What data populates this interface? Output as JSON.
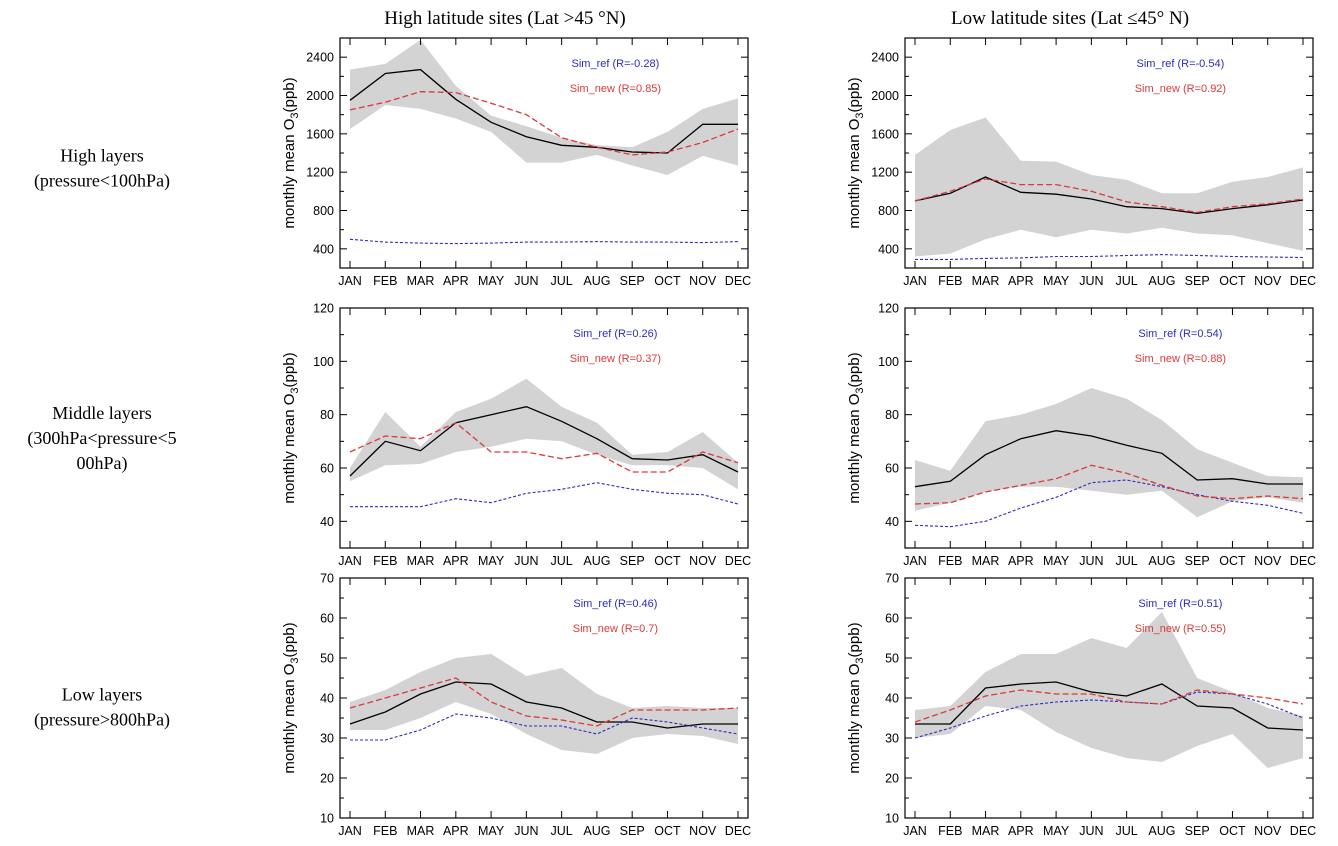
{
  "column_titles": [
    "High latitude sites (Lat >45 °N)",
    "Low latitude sites (Lat ≤45°  N)"
  ],
  "row_labels": [
    [
      "High layers",
      "(pressure<100hPa)"
    ],
    [
      "Middle layers",
      "(300hPa<pressure<5",
      "00hPa)"
    ],
    [
      "Low layers",
      "(pressure>800hPa)"
    ]
  ],
  "colors": {
    "observed": "#000000",
    "sim_ref": "#2b2bc0",
    "sim_new": "#d93a3a",
    "shading": "#d3d3d3"
  },
  "chart_data": [
    {
      "type": "line",
      "row": 0,
      "col": 0,
      "categories": [
        "JAN",
        "FEB",
        "MAR",
        "APR",
        "MAY",
        "JUN",
        "JUL",
        "AUG",
        "SEP",
        "OCT",
        "NOV",
        "DEC"
      ],
      "ylabel": "monthly mean O3(ppb)",
      "ylim": [
        200,
        2600
      ],
      "yticks": [
        400,
        800,
        1200,
        1600,
        2000,
        2400
      ],
      "legend": [
        "Sim_ref (R=-0.28)",
        "Sim_new (R=0.85)"
      ],
      "series": [
        {
          "key": "obs",
          "values": [
            1950,
            2230,
            2270,
            1960,
            1720,
            1570,
            1480,
            1460,
            1410,
            1400,
            1700,
            1700
          ]
        },
        {
          "key": "ref",
          "values": [
            500,
            470,
            460,
            455,
            460,
            470,
            470,
            475,
            470,
            470,
            465,
            475
          ]
        },
        {
          "key": "new",
          "values": [
            1850,
            1930,
            2040,
            2030,
            1920,
            1800,
            1560,
            1460,
            1380,
            1410,
            1510,
            1650
          ]
        }
      ],
      "band_upper": [
        2270,
        2330,
        2580,
        2100,
        1790,
        1680,
        1560,
        1480,
        1460,
        1620,
        1860,
        1970
      ],
      "band_lower": [
        1650,
        1900,
        1860,
        1760,
        1620,
        1300,
        1300,
        1380,
        1270,
        1170,
        1370,
        1270
      ]
    },
    {
      "type": "line",
      "row": 0,
      "col": 1,
      "categories": [
        "JAN",
        "FEB",
        "MAR",
        "APR",
        "MAY",
        "JUN",
        "JUL",
        "AUG",
        "SEP",
        "OCT",
        "NOV",
        "DEC"
      ],
      "ylabel": "monthly mean O3(ppb)",
      "ylim": [
        200,
        2600
      ],
      "yticks": [
        400,
        800,
        1200,
        1600,
        2000,
        2400
      ],
      "legend": [
        "Sim_ref (R=-0.54)",
        "Sim_new (R=0.92)"
      ],
      "series": [
        {
          "key": "obs",
          "values": [
            900,
            980,
            1150,
            990,
            970,
            920,
            840,
            820,
            770,
            820,
            860,
            910
          ]
        },
        {
          "key": "ref",
          "values": [
            290,
            290,
            300,
            305,
            320,
            320,
            330,
            340,
            330,
            320,
            315,
            310
          ]
        },
        {
          "key": "new",
          "values": [
            900,
            1000,
            1130,
            1070,
            1070,
            1000,
            890,
            840,
            780,
            840,
            870,
            920
          ]
        }
      ],
      "band_upper": [
        1380,
        1640,
        1770,
        1320,
        1310,
        1170,
        1120,
        980,
        980,
        1100,
        1150,
        1250
      ],
      "band_lower": [
        320,
        350,
        500,
        600,
        520,
        600,
        560,
        620,
        560,
        540,
        460,
        380
      ]
    },
    {
      "type": "line",
      "row": 1,
      "col": 0,
      "categories": [
        "JAN",
        "FEB",
        "MAR",
        "APR",
        "MAY",
        "JUN",
        "JUL",
        "AUG",
        "SEP",
        "OCT",
        "NOV",
        "DEC"
      ],
      "ylabel": "monthly mean O3(ppb)",
      "ylim": [
        30,
        120
      ],
      "yticks": [
        40,
        60,
        80,
        100,
        120
      ],
      "legend": [
        "Sim_ref (R=0.26)",
        "Sim_new (R=0.37)"
      ],
      "series": [
        {
          "key": "obs",
          "values": [
            57,
            70,
            66.5,
            77,
            80,
            83,
            77.5,
            71,
            63.5,
            63,
            65,
            58.5
          ]
        },
        {
          "key": "ref",
          "values": [
            45.5,
            45.5,
            45.5,
            48.5,
            47,
            50.5,
            52,
            54.5,
            52,
            50.5,
            50,
            46.5
          ]
        },
        {
          "key": "new",
          "values": [
            66,
            72,
            71,
            77,
            66,
            66,
            63.5,
            65.5,
            58.5,
            58.5,
            66,
            62
          ]
        }
      ],
      "band_upper": [
        60,
        81,
        68,
        81,
        86,
        93.5,
        83,
        77,
        65,
        66,
        73.5,
        62
      ],
      "band_lower": [
        55,
        61,
        61.5,
        66,
        68,
        71,
        70,
        65,
        61,
        61,
        60,
        52
      ]
    },
    {
      "type": "line",
      "row": 1,
      "col": 1,
      "categories": [
        "JAN",
        "FEB",
        "MAR",
        "APR",
        "MAY",
        "JUN",
        "JUL",
        "AUG",
        "SEP",
        "OCT",
        "NOV",
        "DEC"
      ],
      "ylabel": "monthly mean O3(ppb)",
      "ylim": [
        30,
        120
      ],
      "yticks": [
        40,
        60,
        80,
        100,
        120
      ],
      "legend": [
        "Sim_ref (R=0.54)",
        "Sim_new (R=0.88)"
      ],
      "series": [
        {
          "key": "obs",
          "values": [
            53,
            55,
            65,
            71,
            74,
            72,
            68.5,
            65.5,
            55.5,
            56,
            54,
            54
          ]
        },
        {
          "key": "ref",
          "values": [
            38.5,
            38,
            40,
            45,
            49,
            54.5,
            55.5,
            53,
            50,
            47.5,
            46,
            43
          ]
        },
        {
          "key": "new",
          "values": [
            46.5,
            47,
            51,
            53.5,
            56,
            61,
            58,
            53.5,
            49.5,
            48.5,
            49.5,
            48.5
          ]
        }
      ],
      "band_upper": [
        63,
        59,
        77.5,
        80,
        84,
        90,
        86,
        78,
        67,
        62,
        57,
        56.5
      ],
      "band_lower": [
        44,
        47,
        51,
        53,
        53,
        51.5,
        50,
        51.5,
        41.5,
        47.5,
        49,
        47
      ]
    },
    {
      "type": "line",
      "row": 2,
      "col": 0,
      "categories": [
        "JAN",
        "FEB",
        "MAR",
        "APR",
        "MAY",
        "JUN",
        "JUL",
        "AUG",
        "SEP",
        "OCT",
        "NOV",
        "DEC"
      ],
      "ylabel": "monthly mean O3(ppb)",
      "ylim": [
        10,
        70
      ],
      "yticks": [
        10,
        20,
        30,
        40,
        50,
        60,
        70
      ],
      "legend": [
        "Sim_ref (R=0.46)",
        "Sim_new (R=0.7)"
      ],
      "series": [
        {
          "key": "obs",
          "values": [
            33.5,
            36.5,
            41,
            44,
            43.5,
            39,
            37.5,
            34,
            34,
            32.5,
            33.5,
            33.5
          ]
        },
        {
          "key": "ref",
          "values": [
            29.5,
            29.5,
            32,
            36,
            35,
            33,
            33,
            31,
            35,
            34,
            32.5,
            31
          ]
        },
        {
          "key": "new",
          "values": [
            37.5,
            40,
            42.5,
            45,
            39,
            35.5,
            34.5,
            33,
            37,
            37,
            37,
            37.5
          ]
        }
      ],
      "band_upper": [
        39,
        42,
        46.5,
        50,
        51,
        45.5,
        47.5,
        41,
        37.5,
        38,
        37.5,
        37.5
      ],
      "band_lower": [
        32,
        32,
        35,
        39,
        36,
        31,
        27,
        26,
        30,
        31,
        30.5,
        28.5
      ]
    },
    {
      "type": "line",
      "row": 2,
      "col": 1,
      "categories": [
        "JAN",
        "FEB",
        "MAR",
        "APR",
        "MAY",
        "JUN",
        "JUL",
        "AUG",
        "SEP",
        "OCT",
        "NOV",
        "DEC"
      ],
      "ylabel": "monthly mean O3(ppb)",
      "ylim": [
        10,
        70
      ],
      "yticks": [
        10,
        20,
        30,
        40,
        50,
        60,
        70
      ],
      "legend": [
        "Sim_ref (R=0.51)",
        "Sim_new (R=0.55)"
      ],
      "series": [
        {
          "key": "obs",
          "values": [
            33.5,
            33.5,
            42.5,
            43.5,
            44,
            41.5,
            40.5,
            43.5,
            38,
            37.5,
            32.5,
            32
          ]
        },
        {
          "key": "ref",
          "values": [
            30,
            32.5,
            35.5,
            38,
            39,
            39.5,
            39,
            38.5,
            41.5,
            41,
            38.5,
            35
          ]
        },
        {
          "key": "new",
          "values": [
            34,
            37,
            40.5,
            42,
            41,
            41,
            39,
            38.5,
            42,
            41,
            40,
            38.5
          ]
        }
      ],
      "band_upper": [
        37,
        38,
        46.5,
        51,
        51,
        55,
        52.5,
        61.5,
        45,
        41.5,
        37.5,
        35.5
      ],
      "band_lower": [
        30,
        31,
        38,
        37,
        31.5,
        27.5,
        25,
        24,
        28,
        31,
        22.5,
        25
      ]
    }
  ]
}
